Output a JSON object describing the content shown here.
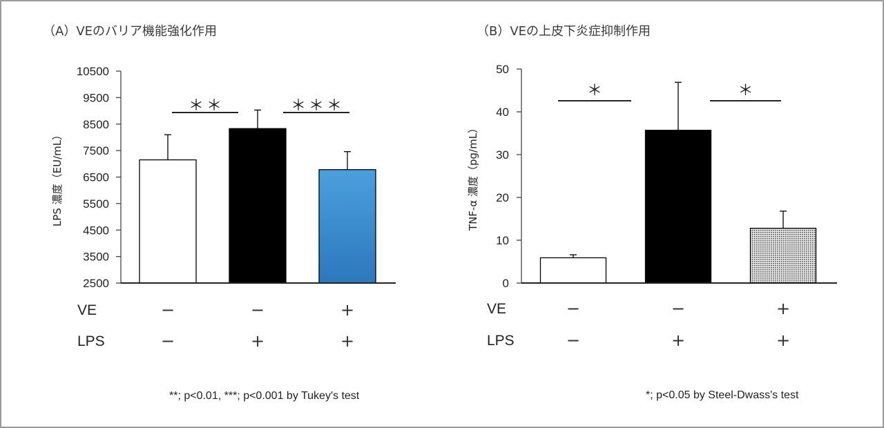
{
  "chart_data": [
    {
      "type": "bar",
      "title": "（A）VEのバリア機能強化作用",
      "ylabel": "LPS 濃度（EU/mL）",
      "ylim": [
        2500,
        10500
      ],
      "yticks": [
        "10500",
        "9500",
        "8500",
        "7500",
        "6500",
        "5500",
        "4500",
        "3500",
        "2500"
      ],
      "ytick_values": [
        10500,
        9500,
        8500,
        7500,
        6500,
        5500,
        4500,
        3500,
        2500
      ],
      "categories": [
        "VE − / LPS −",
        "VE − / LPS +",
        "VE + / LPS +"
      ],
      "values": [
        7150,
        8330,
        6780
      ],
      "errors": [
        950,
        700,
        680
      ],
      "bar_colors": [
        "#ffffff",
        "#000000",
        "#3a8fd0"
      ],
      "significance": [
        {
          "label": "＊＊",
          "between": [
            0,
            1
          ]
        },
        {
          "label": "＊＊＊",
          "between": [
            1,
            2
          ]
        }
      ],
      "rows": [
        {
          "label": "VE",
          "signs": [
            "−",
            "−",
            "+"
          ]
        },
        {
          "label": "LPS",
          "signs": [
            "−",
            "+",
            "+"
          ]
        }
      ],
      "footnote": "**; p<0.01, ***; p<0.001 by Tukey's test"
    },
    {
      "type": "bar",
      "title": "（B）VEの上皮下炎症抑制作用",
      "ylabel": "TNF-α 濃度（pg/mL）",
      "ylim": [
        0,
        50
      ],
      "yticks": [
        "50",
        "40",
        "30",
        "20",
        "10",
        "0"
      ],
      "ytick_values": [
        50,
        40,
        30,
        20,
        10,
        0
      ],
      "categories": [
        "VE − / LPS −",
        "VE − / LPS +",
        "VE + / LPS +"
      ],
      "values": [
        5.9,
        35.7,
        12.8
      ],
      "errors": [
        0.7,
        11.2,
        4.0
      ],
      "bar_colors": [
        "#ffffff",
        "#000000",
        "#9a9a9a"
      ],
      "significance": [
        {
          "label": "＊",
          "between": [
            0,
            1
          ]
        },
        {
          "label": "＊",
          "between": [
            1,
            2
          ]
        }
      ],
      "rows": [
        {
          "label": "VE",
          "signs": [
            "−",
            "−",
            "+"
          ]
        },
        {
          "label": "LPS",
          "signs": [
            "−",
            "+",
            "+"
          ]
        }
      ],
      "footnote": "*; p<0.05 by Steel-Dwass's test"
    }
  ]
}
